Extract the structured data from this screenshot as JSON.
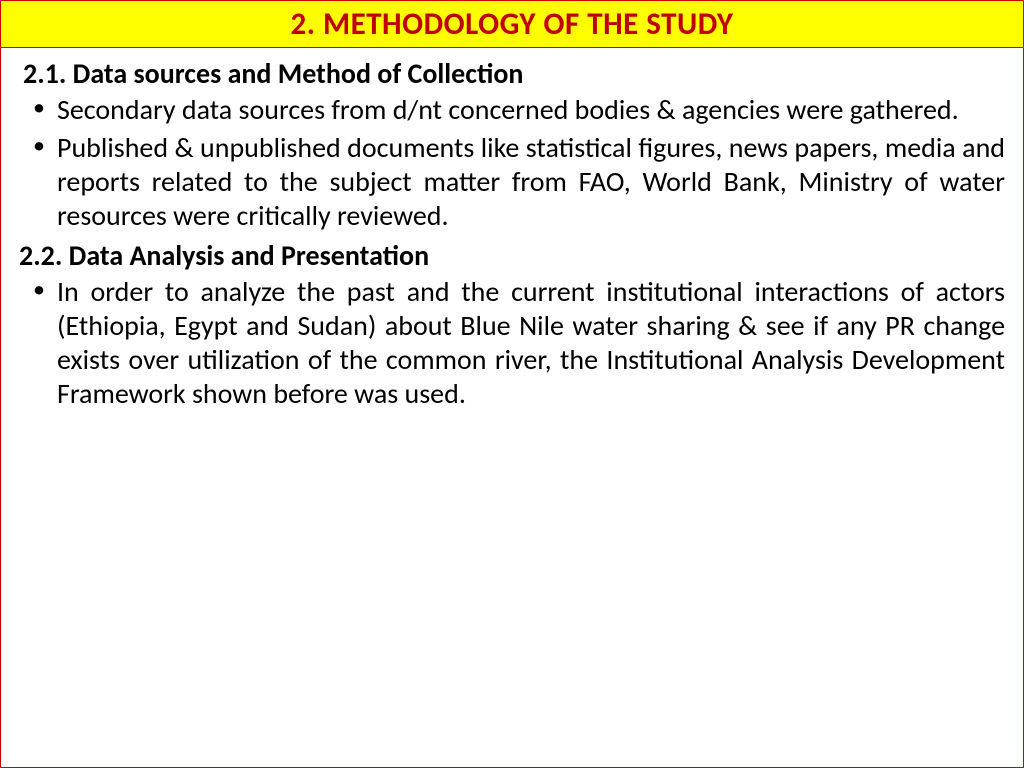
{
  "title": {
    "text": "2. METHODOLOGY OF THE STUDY",
    "background_color": "#ffff00",
    "text_color": "#c00000",
    "border_color": "#cc0000",
    "font_size": 31,
    "font_weight": "bold"
  },
  "content_box": {
    "border_color": "#cc0000",
    "background_color": "#ffffff"
  },
  "sections": [
    {
      "heading": "2.1. Data sources and Method of Collection",
      "bullets": [
        "Secondary data sources from d/nt concerned bodies & agencies were gathered.",
        "Published & unpublished documents like statistical figures, news papers, media and reports related to the subject matter from FAO, World Bank, Ministry of water resources were critically reviewed."
      ]
    },
    {
      "heading": "2.2. Data Analysis and Presentation",
      "bullets": [
        "In order to analyze the past and the current institutional interactions of actors (Ethiopia, Egypt and Sudan) about Blue Nile water sharing & see if any PR change exists over utilization of the common river, the Institutional Analysis Development Framework shown before was used."
      ]
    }
  ],
  "body_text": {
    "font_size": 28,
    "text_color": "#000000",
    "line_height": 1.22
  }
}
